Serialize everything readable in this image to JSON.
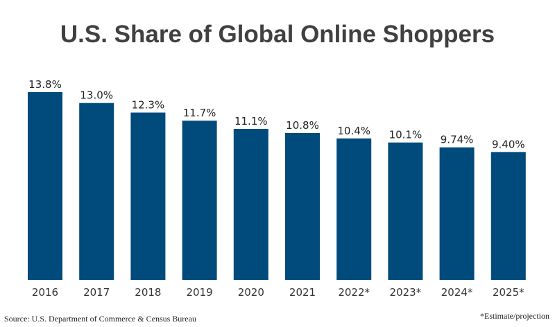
{
  "chart_data": {
    "type": "bar",
    "title": "U.S. Share of Global Online Shoppers",
    "categories": [
      "2016",
      "2017",
      "2018",
      "2019",
      "2020",
      "2021",
      "2022*",
      "2023*",
      "2024*",
      "2025*"
    ],
    "values": [
      13.8,
      13.0,
      12.3,
      11.7,
      11.1,
      10.8,
      10.4,
      10.1,
      9.74,
      9.4
    ],
    "data_labels": [
      "13.8%",
      "13.0%",
      "12.3%",
      "11.7%",
      "11.1%",
      "10.8%",
      "10.4%",
      "10.1%",
      "9.74%",
      "9.40%"
    ],
    "xlabel": "",
    "ylabel": "",
    "ylim": [
      0,
      13.8
    ],
    "grid": false,
    "bar_color": "#004a7c"
  },
  "source": "Source: U.S. Department of Commerce & Census Bureau",
  "footnote": "*Estimate/projection"
}
